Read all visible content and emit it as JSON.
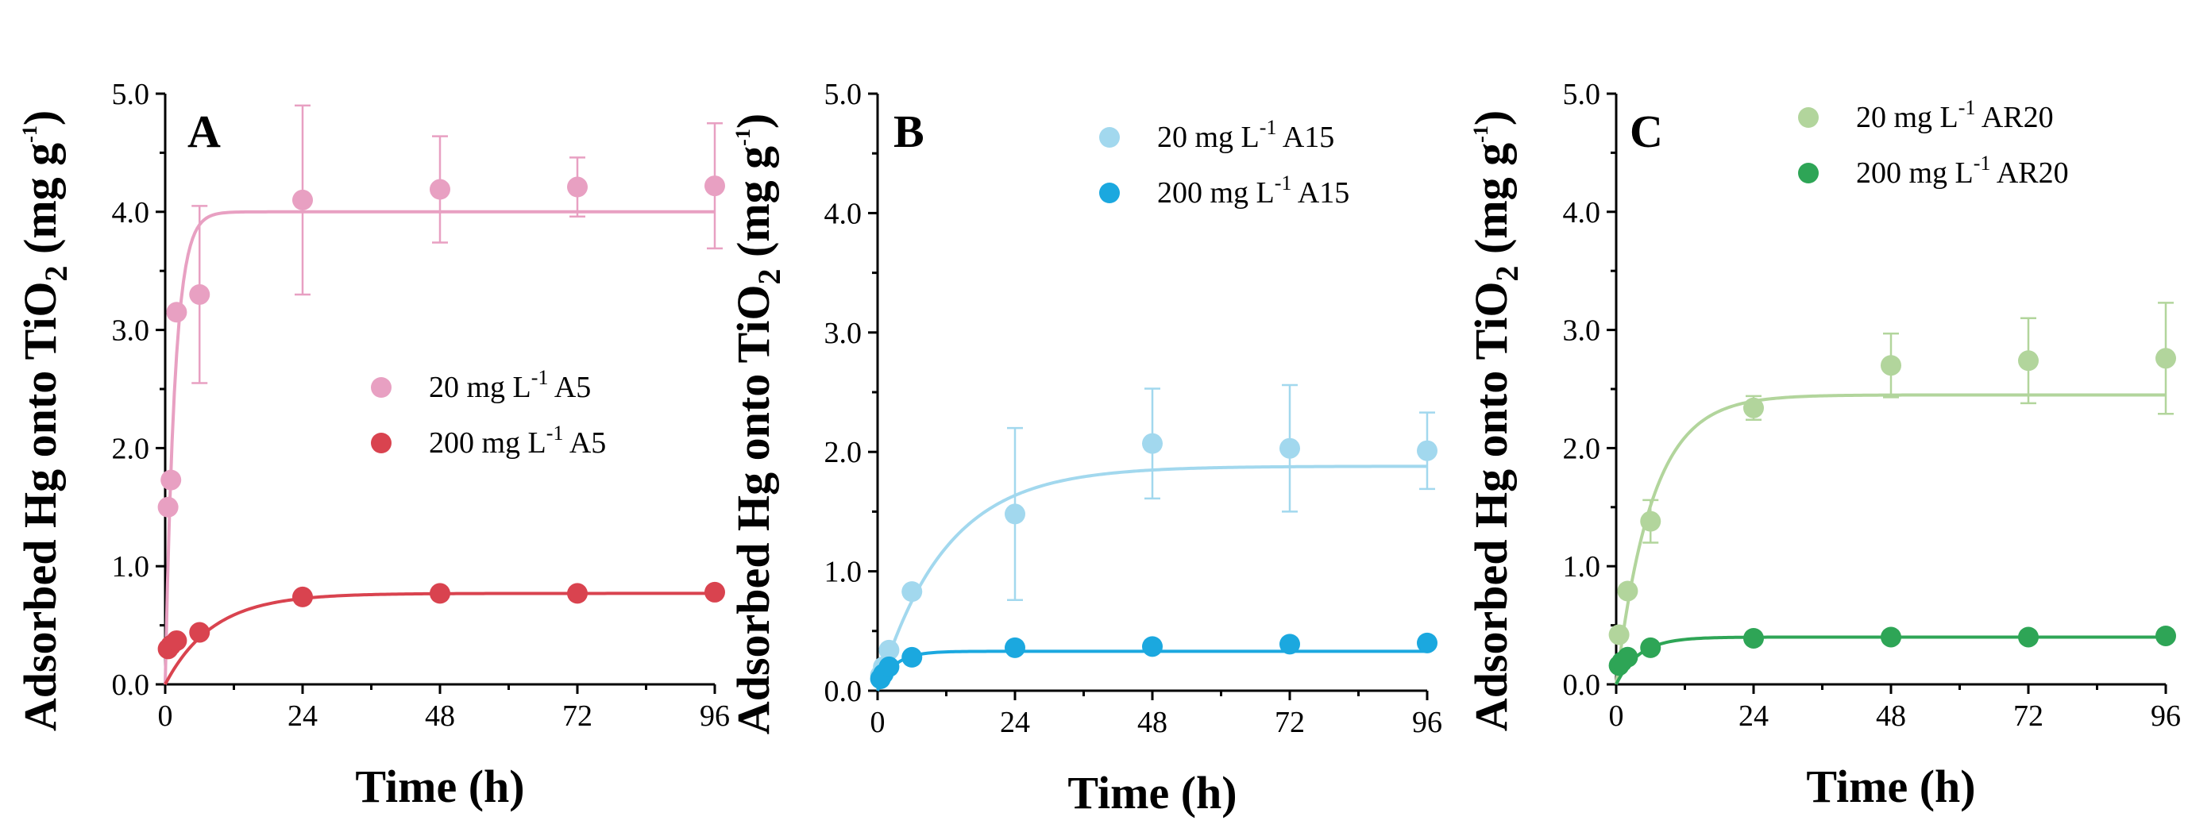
{
  "chart_data": [
    {
      "type": "scatter",
      "panel_label": "A",
      "title": "",
      "xlabel": "Time (h)",
      "ylabel": {
        "main": "Adsorbed Hg onto TiO",
        "sub": "2",
        "unit_open": " (mg g",
        "unit_sup": "-1",
        "unit_close": ")"
      },
      "xlim": [
        0,
        96
      ],
      "ylim": [
        0,
        5
      ],
      "xticks": [
        "0",
        "24",
        "48",
        "72",
        "96"
      ],
      "yticks": [
        "0.0",
        "1.0",
        "2.0",
        "3.0",
        "4.0",
        "5.0"
      ],
      "legend_position": "center-right",
      "series": [
        {
          "name": "20 mg L-1 A5",
          "legend": {
            "pre": "20 mg L",
            "sup": "-1",
            "post": " A5"
          },
          "color": "#e8a0c2",
          "points": [
            {
              "x": 0.5,
              "y": 1.5
            },
            {
              "x": 1,
              "y": 1.73
            },
            {
              "x": 2,
              "y": 3.15
            },
            {
              "x": 6,
              "y": 3.3,
              "err": 0.75
            },
            {
              "x": 24,
              "y": 4.1,
              "err": 0.8
            },
            {
              "x": 48,
              "y": 4.19,
              "err": 0.45
            },
            {
              "x": 72,
              "y": 4.21,
              "err": 0.25
            },
            {
              "x": 96,
              "y": 4.22,
              "err": 0.53
            }
          ],
          "fit": {
            "qe": 4.0,
            "k": 0.6,
            "x0": 0
          }
        },
        {
          "name": "200 mg L-1 A5",
          "legend": {
            "pre": "200 mg L",
            "sup": "-1",
            "post": " A5"
          },
          "color": "#d9434f",
          "points": [
            {
              "x": 0.5,
              "y": 0.3
            },
            {
              "x": 1,
              "y": 0.33
            },
            {
              "x": 2,
              "y": 0.37
            },
            {
              "x": 6,
              "y": 0.44
            },
            {
              "x": 24,
              "y": 0.74
            },
            {
              "x": 48,
              "y": 0.77
            },
            {
              "x": 72,
              "y": 0.77
            },
            {
              "x": 96,
              "y": 0.78
            }
          ],
          "fit": {
            "qe": 0.77,
            "k": 0.12,
            "x0": 0
          }
        }
      ]
    },
    {
      "type": "scatter",
      "panel_label": "B",
      "title": "",
      "xlabel": "Time (h)",
      "ylabel": {
        "main": "Adsorbed Hg onto TiO",
        "sub": "2",
        "unit_open": " (mg g",
        "unit_sup": "-1",
        "unit_close": ")"
      },
      "xlim": [
        0,
        96
      ],
      "ylim": [
        0,
        5
      ],
      "xticks": [
        "0",
        "24",
        "48",
        "72",
        "96"
      ],
      "yticks": [
        "0.0",
        "1.0",
        "2.0",
        "3.0",
        "4.0",
        "5.0"
      ],
      "legend_position": "top-right",
      "series": [
        {
          "name": "20 mg L-1 A15",
          "legend": {
            "pre": "20 mg L",
            "sup": "-1",
            "post": " A15"
          },
          "color": "#a2d8ee",
          "points": [
            {
              "x": 0.5,
              "y": 0.13
            },
            {
              "x": 1,
              "y": 0.2
            },
            {
              "x": 2,
              "y": 0.34
            },
            {
              "x": 6,
              "y": 0.83
            },
            {
              "x": 24,
              "y": 1.48,
              "err": 0.72
            },
            {
              "x": 48,
              "y": 2.07,
              "err": 0.46
            },
            {
              "x": 72,
              "y": 2.03,
              "err": 0.53
            },
            {
              "x": 96,
              "y": 2.01,
              "err": 0.32
            }
          ],
          "fit": {
            "qe": 1.88,
            "k": 0.085,
            "x0": 0
          }
        },
        {
          "name": "200 mg L-1 A15",
          "legend": {
            "pre": "200 mg L",
            "sup": "-1",
            "post": " A15"
          },
          "color": "#1ba8df",
          "points": [
            {
              "x": 0.5,
              "y": 0.1
            },
            {
              "x": 1,
              "y": 0.14
            },
            {
              "x": 2,
              "y": 0.2
            },
            {
              "x": 6,
              "y": 0.28
            },
            {
              "x": 24,
              "y": 0.36
            },
            {
              "x": 48,
              "y": 0.37
            },
            {
              "x": 72,
              "y": 0.39
            },
            {
              "x": 96,
              "y": 0.4
            }
          ],
          "fit": {
            "qe": 0.33,
            "k": 0.35,
            "x0": 0
          }
        }
      ]
    },
    {
      "type": "scatter",
      "panel_label": "C",
      "title": "",
      "xlabel": "Time (h)",
      "ylabel": {
        "main": "Adsorbed Hg onto TiO",
        "sub": "2",
        "unit_open": " (mg g",
        "unit_sup": "-1",
        "unit_close": ")"
      },
      "xlim": [
        0,
        96
      ],
      "ylim": [
        0,
        5
      ],
      "xticks": [
        "0",
        "24",
        "48",
        "72",
        "96"
      ],
      "yticks": [
        "0.0",
        "1.0",
        "2.0",
        "3.0",
        "4.0",
        "5.0"
      ],
      "legend_position": "top-right",
      "series": [
        {
          "name": "20 mg L-1 AR20",
          "legend": {
            "pre": "20 mg L",
            "sup": "-1",
            "post": " AR20"
          },
          "color": "#b2d59c",
          "points": [
            {
              "x": 0.5,
              "y": 0.42
            },
            {
              "x": 2,
              "y": 0.79
            },
            {
              "x": 6,
              "y": 1.38,
              "err": 0.18
            },
            {
              "x": 24,
              "y": 2.34,
              "err": 0.1
            },
            {
              "x": 48,
              "y": 2.7,
              "err": 0.27
            },
            {
              "x": 72,
              "y": 2.74,
              "err": 0.36
            },
            {
              "x": 96,
              "y": 2.76,
              "err": 0.47
            }
          ],
          "fit": {
            "qe": 2.45,
            "k": 0.16,
            "x0": 0
          }
        },
        {
          "name": "200 mg L-1 AR20",
          "legend": {
            "pre": "200 mg L",
            "sup": "-1",
            "post": " AR20"
          },
          "color": "#2ea556",
          "points": [
            {
              "x": 0.5,
              "y": 0.16
            },
            {
              "x": 1,
              "y": 0.19
            },
            {
              "x": 2,
              "y": 0.23
            },
            {
              "x": 6,
              "y": 0.31
            },
            {
              "x": 24,
              "y": 0.39
            },
            {
              "x": 48,
              "y": 0.4
            },
            {
              "x": 72,
              "y": 0.4
            },
            {
              "x": 96,
              "y": 0.41
            }
          ],
          "fit": {
            "qe": 0.4,
            "k": 0.25,
            "x0": 0
          }
        }
      ]
    }
  ]
}
